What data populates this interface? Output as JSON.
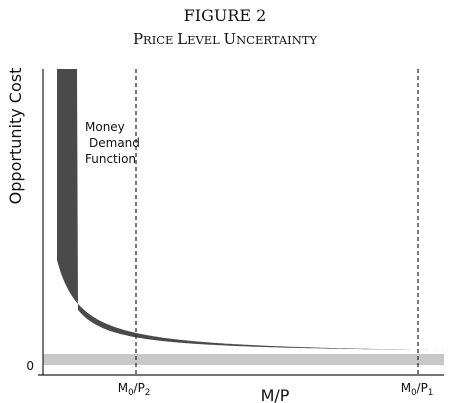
{
  "figure": {
    "number": "FIGURE 2",
    "title": "Price Level Uncertainty",
    "title_parts": [
      {
        "text": "P",
        "size": "big"
      },
      {
        "text": "RICE ",
        "size": "small"
      },
      {
        "text": "L",
        "size": "big"
      },
      {
        "text": "EVEL ",
        "size": "small"
      },
      {
        "text": "U",
        "size": "big"
      },
      {
        "text": "NCERTAINTY",
        "size": "small"
      }
    ]
  },
  "chart_data": {
    "type": "area",
    "title": "Price Level Uncertainty",
    "xlabel": "M/P",
    "ylabel": "Opportunity Cost",
    "y_tick_labels": [
      "0"
    ],
    "x_tick_labels": [
      {
        "main": "M",
        "sub1": "0",
        "mid": "/P",
        "sub2": "2"
      },
      {
        "main": "M",
        "sub1": "0",
        "mid": "/P",
        "sub2": "1"
      }
    ],
    "annotation_lines": [
      "Money",
      "Demand",
      "Function"
    ],
    "band_color": "#4a4a4a",
    "baseline_band_color": "#c8c8c8",
    "grid": false,
    "legend": "none"
  }
}
